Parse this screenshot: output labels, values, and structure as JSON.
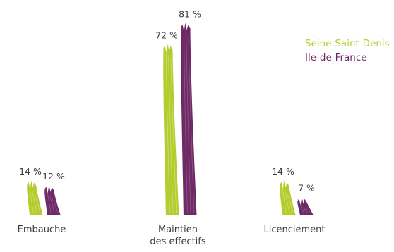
{
  "chart_data": {
    "type": "bar",
    "categories": [
      "Embauche",
      "Maintien des effectifs",
      "Licenciement"
    ],
    "category_lines": [
      [
        "Embauche"
      ],
      [
        "Maintien",
        "des effectifs"
      ],
      [
        "Licenciement"
      ]
    ],
    "series": [
      {
        "name": "Seine-Saint-Denis",
        "color": "#b5cc2e",
        "values": [
          14,
          72,
          14
        ]
      },
      {
        "name": "Ile-de-France",
        "color": "#6e2a66",
        "values": [
          12,
          81,
          7
        ]
      }
    ],
    "value_labels": {
      "Seine-Saint-Denis": [
        "14 %",
        "72 %",
        "14 %"
      ],
      "Ile-de-France": [
        "12 %",
        "81 %",
        "7 %"
      ]
    },
    "ylim": [
      0,
      100
    ],
    "legend_position": "top-right",
    "title": "",
    "xlabel": "",
    "ylabel": ""
  }
}
